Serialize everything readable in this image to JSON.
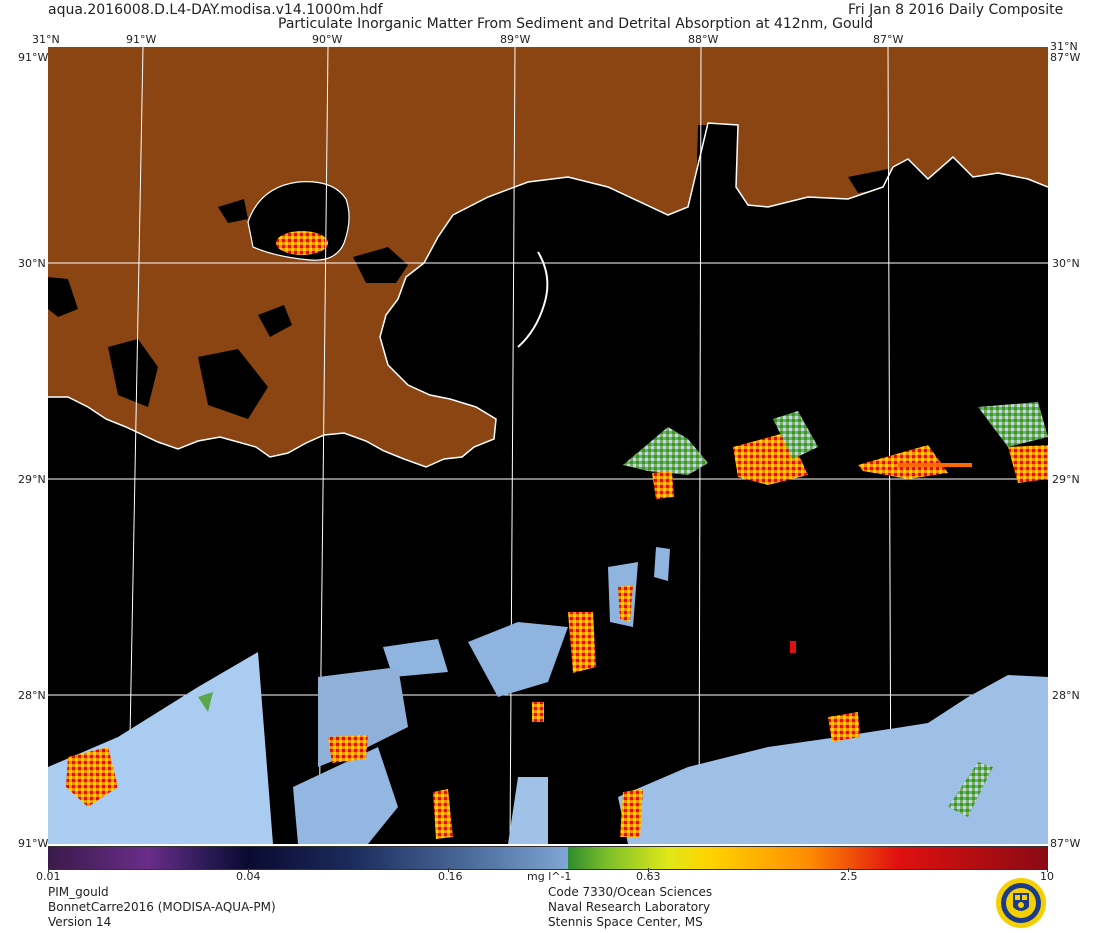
{
  "header": {
    "filename": "aqua.2016008.D.L4-DAY.modisa.v14.1000m.hdf",
    "title": "Particulate Inorganic Matter From Sediment and Detrital Absorption at 412nm, Gould",
    "date": "Fri Jan  8 2016 Daily Composite"
  },
  "map": {
    "top_lon_labels": [
      "31°N",
      "91°W",
      "90°W",
      "89°W",
      "88°W",
      "87°W",
      "31°N"
    ],
    "lat_labels": [
      "30°N",
      "29°N",
      "28°N"
    ],
    "corner_labels": [
      "91°W",
      "87°W",
      "91°W",
      "87°W"
    ],
    "land_color": "#8b4513",
    "water_color": "#000000",
    "coast_color": "#ffffff",
    "grid_color": "#ffffff",
    "places": []
  },
  "colorbar": {
    "ticks": [
      "0.01",
      "0.04",
      "0.16",
      "0.63",
      "2.5",
      "10"
    ],
    "units": "mg l^-1"
  },
  "footer": {
    "left": [
      "PIM_gould",
      "BonnetCarre2016 (MODISA-AQUA-PM)",
      "Version 14"
    ],
    "right": [
      "Code 7330/Ocean Sciences",
      "Naval Research Laboratory",
      "Stennis Space Center, MS"
    ],
    "logo": "nrl-seal"
  }
}
